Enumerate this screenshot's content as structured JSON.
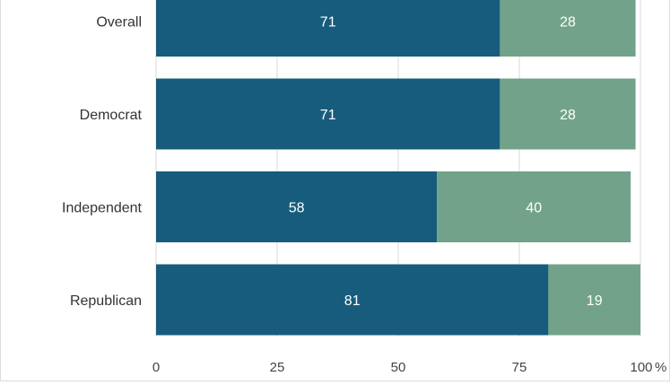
{
  "chart_data": {
    "type": "bar",
    "orientation": "horizontal",
    "stacked": true,
    "categories": [
      "Overall",
      "Democrat",
      "Independent",
      "Republican"
    ],
    "series": [
      {
        "values": [
          71,
          71,
          58,
          81
        ],
        "color": "#175c7c"
      },
      {
        "values": [
          28,
          28,
          40,
          19
        ],
        "color": "#72a38a"
      }
    ],
    "x_ticks": [
      "0",
      "25",
      "50",
      "75",
      "100"
    ],
    "x_tick_values": [
      0,
      25,
      50,
      75,
      100
    ],
    "x_unit": "%",
    "xlim": [
      0,
      100
    ],
    "grid": true,
    "legend": "none"
  }
}
